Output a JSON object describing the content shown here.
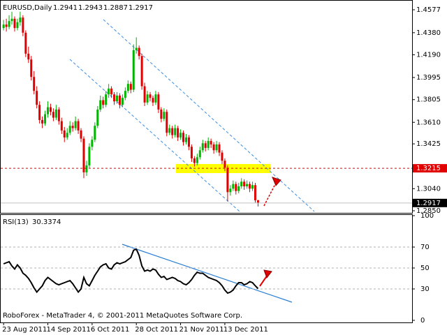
{
  "chart_data": [
    {
      "type": "candlestick",
      "title": "EURUSD,Daily",
      "up_color": "#00b400",
      "down_color": "#e00000",
      "level": 1.3215,
      "level_color": "#e00000",
      "footer": "RoboForex - MetaTrader 4, © 2001-2011 MetaQuotes Software Corp.",
      "xlim": [
        -1.3,
        147.7
      ],
      "ylim": [
        1.2832,
        1.4631
      ],
      "yticks": [
        1.4577,
        {
          "value": 1.438,
          "label": "1.4380"
        },
        {
          "value": 1.419,
          "label": "1.4190"
        },
        1.3995,
        1.3805,
        {
          "value": 1.361,
          "label": "1.3610"
        },
        1.3425,
        {
          "value": 1.304,
          "label": "1.3040"
        },
        {
          "value": 1.285,
          "label": "1.2850"
        }
      ],
      "xticks": [
        {
          "value": 0,
          "label": "23 Aug 2011"
        },
        {
          "value": 16,
          "label": "14 Sep 2011"
        },
        {
          "value": 32,
          "label": "6 Oct 2011"
        },
        {
          "value": 48,
          "label": "28 Oct 2011"
        },
        {
          "value": 64,
          "label": "21 Nov 2011"
        },
        {
          "value": 80,
          "label": "13 Dec 2011"
        }
      ],
      "candles": [
        [
          1.442,
          1.449,
          1.44,
          1.445
        ],
        [
          1.445,
          1.45,
          1.439,
          1.443
        ],
        [
          1.443,
          1.453,
          1.441,
          1.448
        ],
        [
          1.448,
          1.456,
          1.445,
          1.45
        ],
        [
          1.45,
          1.452,
          1.439,
          1.442
        ],
        [
          1.442,
          1.45,
          1.44,
          1.447
        ],
        [
          1.447,
          1.456,
          1.444,
          1.451
        ],
        [
          1.451,
          1.453,
          1.435,
          1.438
        ],
        [
          1.438,
          1.44,
          1.417,
          1.42
        ],
        [
          1.42,
          1.426,
          1.412,
          1.415
        ],
        [
          1.415,
          1.418,
          1.397,
          1.4
        ],
        [
          1.4,
          1.405,
          1.385,
          1.388
        ],
        [
          1.388,
          1.392,
          1.373,
          1.376
        ],
        [
          1.376,
          1.379,
          1.36,
          1.363
        ],
        [
          1.363,
          1.366,
          1.356,
          1.36
        ],
        [
          1.36,
          1.371,
          1.358,
          1.368
        ],
        [
          1.368,
          1.379,
          1.365,
          1.374
        ],
        [
          1.374,
          1.377,
          1.367,
          1.37
        ],
        [
          1.37,
          1.373,
          1.362,
          1.365
        ],
        [
          1.365,
          1.376,
          1.363,
          1.372
        ],
        [
          1.372,
          1.374,
          1.359,
          1.362
        ],
        [
          1.362,
          1.365,
          1.351,
          1.354
        ],
        [
          1.354,
          1.357,
          1.344,
          1.348
        ],
        [
          1.348,
          1.356,
          1.346,
          1.352
        ],
        [
          1.352,
          1.362,
          1.35,
          1.358
        ],
        [
          1.358,
          1.361,
          1.353,
          1.356
        ],
        [
          1.356,
          1.366,
          1.354,
          1.362
        ],
        [
          1.362,
          1.364,
          1.351,
          1.354
        ],
        [
          1.354,
          1.356,
          1.344,
          1.347
        ],
        [
          1.347,
          1.349,
          1.313,
          1.318
        ],
        [
          1.318,
          1.328,
          1.315,
          1.324
        ],
        [
          1.324,
          1.343,
          1.322,
          1.34
        ],
        [
          1.34,
          1.349,
          1.337,
          1.346
        ],
        [
          1.346,
          1.361,
          1.344,
          1.358
        ],
        [
          1.358,
          1.375,
          1.356,
          1.372
        ],
        [
          1.372,
          1.384,
          1.37,
          1.38
        ],
        [
          1.38,
          1.383,
          1.373,
          1.376
        ],
        [
          1.376,
          1.388,
          1.374,
          1.385
        ],
        [
          1.385,
          1.394,
          1.382,
          1.39
        ],
        [
          1.39,
          1.392,
          1.382,
          1.385
        ],
        [
          1.385,
          1.387,
          1.376,
          1.379
        ],
        [
          1.379,
          1.387,
          1.377,
          1.384
        ],
        [
          1.384,
          1.386,
          1.373,
          1.376
        ],
        [
          1.376,
          1.385,
          1.374,
          1.382
        ],
        [
          1.382,
          1.391,
          1.38,
          1.388
        ],
        [
          1.388,
          1.397,
          1.386,
          1.394
        ],
        [
          1.394,
          1.396,
          1.386,
          1.389
        ],
        [
          1.389,
          1.428,
          1.387,
          1.423
        ],
        [
          1.423,
          1.434,
          1.42,
          1.425
        ],
        [
          1.425,
          1.427,
          1.415,
          1.418
        ],
        [
          1.418,
          1.42,
          1.389,
          1.392
        ],
        [
          1.392,
          1.395,
          1.375,
          1.378
        ],
        [
          1.378,
          1.388,
          1.376,
          1.385
        ],
        [
          1.385,
          1.387,
          1.379,
          1.382
        ],
        [
          1.382,
          1.384,
          1.375,
          1.378
        ],
        [
          1.378,
          1.388,
          1.376,
          1.385
        ],
        [
          1.385,
          1.387,
          1.369,
          1.372
        ],
        [
          1.372,
          1.374,
          1.361,
          1.364
        ],
        [
          1.364,
          1.373,
          1.362,
          1.37
        ],
        [
          1.37,
          1.372,
          1.349,
          1.352
        ],
        [
          1.352,
          1.359,
          1.35,
          1.356
        ],
        [
          1.356,
          1.358,
          1.347,
          1.35
        ],
        [
          1.35,
          1.359,
          1.348,
          1.356
        ],
        [
          1.356,
          1.358,
          1.345,
          1.348
        ],
        [
          1.348,
          1.355,
          1.346,
          1.352
        ],
        [
          1.352,
          1.354,
          1.341,
          1.344
        ],
        [
          1.344,
          1.351,
          1.342,
          1.348
        ],
        [
          1.348,
          1.35,
          1.337,
          1.34
        ],
        [
          1.34,
          1.342,
          1.327,
          1.33
        ],
        [
          1.33,
          1.332,
          1.323,
          1.326
        ],
        [
          1.326,
          1.334,
          1.324,
          1.331
        ],
        [
          1.331,
          1.34,
          1.329,
          1.337
        ],
        [
          1.337,
          1.346,
          1.335,
          1.343
        ],
        [
          1.343,
          1.345,
          1.336,
          1.339
        ],
        [
          1.339,
          1.348,
          1.337,
          1.345
        ],
        [
          1.345,
          1.347,
          1.339,
          1.342
        ],
        [
          1.342,
          1.344,
          1.334,
          1.337
        ],
        [
          1.337,
          1.345,
          1.335,
          1.342
        ],
        [
          1.342,
          1.344,
          1.332,
          1.335
        ],
        [
          1.335,
          1.337,
          1.325,
          1.328
        ],
        [
          1.328,
          1.33,
          1.319,
          1.322
        ],
        [
          1.322,
          1.324,
          1.293,
          1.301
        ],
        [
          1.301,
          1.307,
          1.298,
          1.304
        ],
        [
          1.304,
          1.311,
          1.302,
          1.308
        ],
        [
          1.308,
          1.31,
          1.299,
          1.302
        ],
        [
          1.302,
          1.309,
          1.3,
          1.306
        ],
        [
          1.306,
          1.313,
          1.304,
          1.31
        ],
        [
          1.31,
          1.312,
          1.303,
          1.306
        ],
        [
          1.306,
          1.311,
          1.304,
          1.308
        ],
        [
          1.308,
          1.31,
          1.301,
          1.304
        ],
        [
          1.304,
          1.31,
          1.302,
          1.307
        ],
        [
          1.307,
          1.309,
          1.292,
          1.294
        ],
        [
          1.2941,
          1.2943,
          1.2887,
          1.2917
        ]
      ]
    },
    {
      "type": "line",
      "title": "RSI(13)",
      "color": "#000000",
      "ylim": [
        0,
        100
      ],
      "yticks": [
        100,
        70,
        50,
        30,
        0
      ],
      "values": [
        54,
        55,
        56,
        52,
        49,
        53,
        50,
        45,
        43,
        40,
        36,
        31,
        27,
        30,
        33,
        38,
        41,
        39,
        37,
        35,
        34,
        35,
        36,
        37,
        38,
        35,
        31,
        27,
        30,
        41,
        35,
        33,
        38,
        43,
        47,
        51,
        53,
        54,
        50,
        49,
        53,
        55,
        54,
        55,
        56,
        58,
        60,
        67,
        68,
        62,
        52,
        47,
        48,
        47,
        49,
        48,
        44,
        41,
        42,
        39,
        40,
        41,
        40,
        38,
        37,
        35,
        34,
        36,
        39,
        43,
        46,
        45,
        45,
        43,
        41,
        40,
        39,
        38,
        36,
        33,
        29,
        26,
        27,
        29,
        33,
        36,
        36,
        34,
        35,
        37,
        36,
        33,
        30.3374
      ]
    }
  ]
}
